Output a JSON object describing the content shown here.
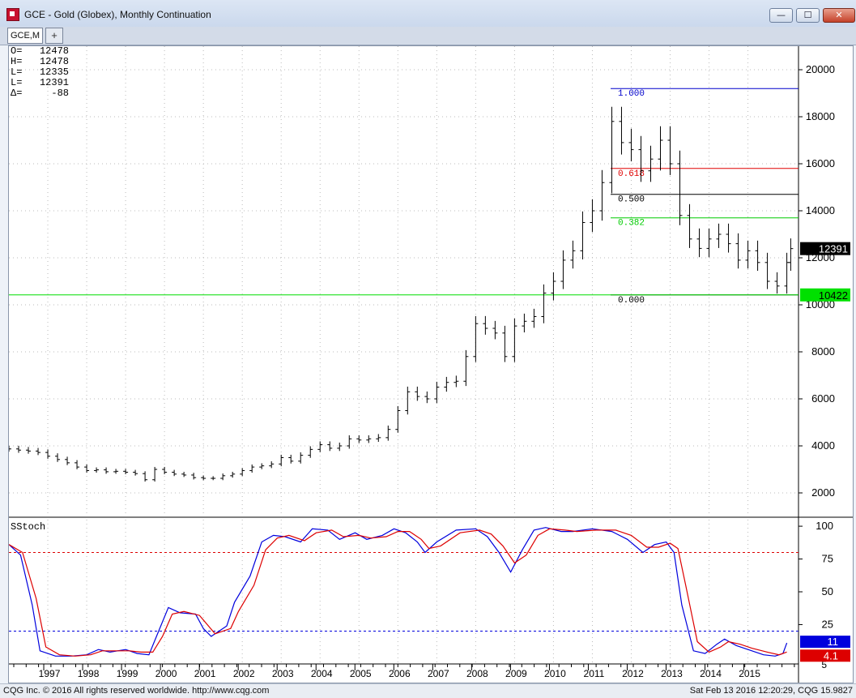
{
  "window": {
    "title": "GCE - Gold (Globex), Monthly Continuation",
    "tab_label": "GCE,M",
    "tab_add": "+",
    "minimize": "—",
    "maximize": "☐",
    "close": "✕"
  },
  "ohlc_readout": [
    {
      "label": "O=",
      "value": "12478"
    },
    {
      "label": "H=",
      "value": "12478"
    },
    {
      "label": "L=",
      "value": "12335"
    },
    {
      "label": "L=",
      "value": "12391"
    },
    {
      "label": "Δ=",
      "value": "-88"
    }
  ],
  "colors": {
    "price_bar": "#000000",
    "fib_blue": "#0000cc",
    "fib_red": "#e00000",
    "fib_green": "#00cc00",
    "fib_black": "#000000",
    "support_line": "#00dd00",
    "stoch_k": "#0000dd",
    "stoch_d": "#dd0000",
    "last_price_badge": "#000000",
    "support_badge": "#00e000"
  },
  "chart_data": [
    {
      "type": "ohlc",
      "series_name": "GCE,M",
      "x_unit": "year",
      "ylim": [
        1000,
        21000
      ],
      "y_ticks": [
        2000,
        4000,
        6000,
        8000,
        10000,
        12000,
        14000,
        16000,
        18000,
        20000
      ],
      "x_ticks": [
        "1997",
        "1998",
        "1999",
        "2000",
        "2001",
        "2002",
        "2003",
        "2004",
        "2005",
        "2006",
        "2007",
        "2008",
        "2009",
        "2010",
        "2011",
        "2012",
        "2013",
        "2014",
        "2015"
      ],
      "grid": true,
      "points": [
        [
          1996.0,
          3870
        ],
        [
          1996.25,
          3820
        ],
        [
          1996.5,
          3780
        ],
        [
          1996.75,
          3720
        ],
        [
          1997.0,
          3560
        ],
        [
          1997.25,
          3420
        ],
        [
          1997.5,
          3280
        ],
        [
          1997.75,
          3100
        ],
        [
          1998.0,
          2950
        ],
        [
          1998.25,
          2980
        ],
        [
          1998.5,
          2900
        ],
        [
          1998.75,
          2920
        ],
        [
          1999.0,
          2880
        ],
        [
          1999.25,
          2820
        ],
        [
          1999.5,
          2560
        ],
        [
          1999.75,
          3000
        ],
        [
          2000.0,
          2880
        ],
        [
          2000.25,
          2800
        ],
        [
          2000.5,
          2760
        ],
        [
          2000.75,
          2650
        ],
        [
          2001.0,
          2620
        ],
        [
          2001.25,
          2620
        ],
        [
          2001.5,
          2730
        ],
        [
          2001.75,
          2800
        ],
        [
          2002.0,
          2950
        ],
        [
          2002.25,
          3100
        ],
        [
          2002.5,
          3150
        ],
        [
          2002.75,
          3230
        ],
        [
          2003.0,
          3500
        ],
        [
          2003.25,
          3350
        ],
        [
          2003.5,
          3600
        ],
        [
          2003.75,
          3850
        ],
        [
          2004.0,
          4050
        ],
        [
          2004.25,
          3900
        ],
        [
          2004.5,
          4000
        ],
        [
          2004.75,
          4300
        ],
        [
          2005.0,
          4250
        ],
        [
          2005.25,
          4300
        ],
        [
          2005.5,
          4350
        ],
        [
          2005.75,
          4700
        ],
        [
          2006.0,
          5500
        ],
        [
          2006.25,
          6300
        ],
        [
          2006.5,
          6100
        ],
        [
          2006.75,
          6000
        ],
        [
          2007.0,
          6500
        ],
        [
          2007.25,
          6700
        ],
        [
          2007.5,
          6750
        ],
        [
          2007.75,
          7800
        ],
        [
          2008.0,
          9200
        ],
        [
          2008.25,
          9000
        ],
        [
          2008.5,
          8800
        ],
        [
          2008.75,
          7800
        ],
        [
          2009.0,
          9100
        ],
        [
          2009.25,
          9300
        ],
        [
          2009.5,
          9500
        ],
        [
          2009.75,
          10500
        ],
        [
          2010.0,
          11000
        ],
        [
          2010.25,
          11900
        ],
        [
          2010.5,
          12300
        ],
        [
          2010.75,
          13500
        ],
        [
          2011.0,
          14000
        ],
        [
          2011.25,
          15200
        ],
        [
          2011.5,
          17800
        ],
        [
          2011.75,
          16900
        ],
        [
          2012.0,
          16600
        ],
        [
          2012.25,
          15700
        ],
        [
          2012.5,
          16200
        ],
        [
          2012.75,
          17000
        ],
        [
          2013.0,
          16000
        ],
        [
          2013.25,
          13800
        ],
        [
          2013.5,
          12800
        ],
        [
          2013.75,
          12400
        ],
        [
          2014.0,
          12800
        ],
        [
          2014.25,
          13000
        ],
        [
          2014.5,
          12600
        ],
        [
          2014.75,
          11900
        ],
        [
          2015.0,
          12300
        ],
        [
          2015.25,
          11800
        ],
        [
          2015.5,
          11000
        ],
        [
          2015.75,
          10800
        ],
        [
          2016.0,
          11800
        ],
        [
          2016.1,
          12391
        ]
      ],
      "fibonacci_levels": [
        {
          "label": "1.000",
          "value": 19200,
          "color_key": "fib_blue"
        },
        {
          "label": "0.618",
          "value": 15800,
          "color_key": "fib_red"
        },
        {
          "label": "0.500",
          "value": 14700,
          "color_key": "fib_black"
        },
        {
          "label": "0.382",
          "value": 13700,
          "color_key": "fib_green"
        },
        {
          "label": "0.000",
          "value": 10422,
          "color_key": "fib_black"
        }
      ],
      "horizontal_line": {
        "value": 10422
      },
      "price_badges": [
        {
          "label": "12391",
          "value": 12391,
          "color_key": "last_price_badge"
        },
        {
          "label": "10422",
          "value": 10422,
          "color_key": "support_badge"
        }
      ]
    },
    {
      "type": "line",
      "indicator_label": "SStoch",
      "ylim": [
        -5,
        105
      ],
      "y_ticks": [
        25,
        50,
        75,
        100
      ],
      "bottom_tick_label": "5",
      "reference_lines": [
        {
          "value": 80,
          "color_key": "stoch_d"
        },
        {
          "value": 20,
          "color_key": "stoch_k"
        }
      ],
      "series": [
        {
          "color_key": "stoch_k",
          "points": [
            [
              1996.0,
              86
            ],
            [
              1996.3,
              78
            ],
            [
              1996.6,
              40
            ],
            [
              1996.8,
              5
            ],
            [
              1997.2,
              1
            ],
            [
              1997.6,
              1
            ],
            [
              1998.0,
              2
            ],
            [
              1998.3,
              6
            ],
            [
              1998.6,
              4
            ],
            [
              1999.0,
              6
            ],
            [
              1999.3,
              3
            ],
            [
              1999.6,
              2
            ],
            [
              1999.85,
              20
            ],
            [
              2000.1,
              38
            ],
            [
              2000.4,
              34
            ],
            [
              2000.8,
              33
            ],
            [
              2001.0,
              22
            ],
            [
              2001.2,
              16
            ],
            [
              2001.6,
              24
            ],
            [
              2001.8,
              42
            ],
            [
              2002.2,
              62
            ],
            [
              2002.5,
              88
            ],
            [
              2002.8,
              93
            ],
            [
              2003.1,
              92
            ],
            [
              2003.5,
              88
            ],
            [
              2003.8,
              98
            ],
            [
              2004.2,
              97
            ],
            [
              2004.5,
              90
            ],
            [
              2004.9,
              95
            ],
            [
              2005.2,
              90
            ],
            [
              2005.6,
              93
            ],
            [
              2005.9,
              98
            ],
            [
              2006.2,
              95
            ],
            [
              2006.5,
              88
            ],
            [
              2006.7,
              80
            ],
            [
              2007.0,
              88
            ],
            [
              2007.5,
              97
            ],
            [
              2008.0,
              98
            ],
            [
              2008.3,
              92
            ],
            [
              2008.6,
              80
            ],
            [
              2008.9,
              65
            ],
            [
              2009.2,
              82
            ],
            [
              2009.5,
              97
            ],
            [
              2009.8,
              99
            ],
            [
              2010.2,
              96
            ],
            [
              2010.5,
              96
            ],
            [
              2011.0,
              98
            ],
            [
              2011.5,
              96
            ],
            [
              2011.9,
              90
            ],
            [
              2012.3,
              80
            ],
            [
              2012.6,
              86
            ],
            [
              2012.9,
              88
            ],
            [
              2013.1,
              80
            ],
            [
              2013.3,
              40
            ],
            [
              2013.6,
              5
            ],
            [
              2013.9,
              3
            ],
            [
              2014.2,
              10
            ],
            [
              2014.4,
              14
            ],
            [
              2014.7,
              9
            ],
            [
              2015.0,
              6
            ],
            [
              2015.4,
              2
            ],
            [
              2015.7,
              1
            ],
            [
              2015.9,
              3
            ],
            [
              2016.0,
              11
            ]
          ]
        },
        {
          "color_key": "stoch_d",
          "points": [
            [
              1996.0,
              86
            ],
            [
              1996.35,
              80
            ],
            [
              1996.7,
              45
            ],
            [
              1996.95,
              8
            ],
            [
              1997.3,
              2
            ],
            [
              1997.7,
              1
            ],
            [
              1998.1,
              2
            ],
            [
              1998.4,
              5
            ],
            [
              1998.7,
              5
            ],
            [
              1999.1,
              5
            ],
            [
              1999.4,
              4
            ],
            [
              1999.7,
              4
            ],
            [
              1999.95,
              16
            ],
            [
              2000.2,
              33
            ],
            [
              2000.5,
              35
            ],
            [
              2000.9,
              32
            ],
            [
              2001.1,
              25
            ],
            [
              2001.3,
              18
            ],
            [
              2001.7,
              22
            ],
            [
              2001.9,
              35
            ],
            [
              2002.3,
              55
            ],
            [
              2002.6,
              82
            ],
            [
              2002.9,
              91
            ],
            [
              2003.2,
              93
            ],
            [
              2003.6,
              89
            ],
            [
              2003.9,
              95
            ],
            [
              2004.3,
              97
            ],
            [
              2004.6,
              92
            ],
            [
              2005.0,
              93
            ],
            [
              2005.3,
              91
            ],
            [
              2005.7,
              92
            ],
            [
              2006.0,
              96
            ],
            [
              2006.3,
              96
            ],
            [
              2006.6,
              90
            ],
            [
              2006.8,
              83
            ],
            [
              2007.1,
              85
            ],
            [
              2007.6,
              95
            ],
            [
              2008.1,
              97
            ],
            [
              2008.4,
              94
            ],
            [
              2008.7,
              85
            ],
            [
              2009.0,
              72
            ],
            [
              2009.3,
              78
            ],
            [
              2009.6,
              93
            ],
            [
              2009.9,
              98
            ],
            [
              2010.3,
              97
            ],
            [
              2010.6,
              96
            ],
            [
              2011.1,
              97
            ],
            [
              2011.6,
              97
            ],
            [
              2012.0,
              93
            ],
            [
              2012.4,
              84
            ],
            [
              2012.7,
              84
            ],
            [
              2013.0,
              87
            ],
            [
              2013.2,
              83
            ],
            [
              2013.4,
              55
            ],
            [
              2013.7,
              12
            ],
            [
              2014.0,
              4
            ],
            [
              2014.3,
              8
            ],
            [
              2014.5,
              12
            ],
            [
              2014.8,
              10
            ],
            [
              2015.1,
              7
            ],
            [
              2015.5,
              4
            ],
            [
              2015.8,
              2
            ],
            [
              2016.0,
              4.1
            ]
          ]
        }
      ],
      "value_badges": [
        {
          "label": "11",
          "value": 11,
          "color_key": "stoch_k"
        },
        {
          "label": "4.1",
          "value": 4.1,
          "color_key": "stoch_d"
        }
      ]
    }
  ],
  "status": {
    "left": "CQG Inc. © 2016 All rights reserved worldwide. http://www.cqg.com",
    "right": "Sat Feb 13 2016 12:20:29, CQG 15.9827"
  }
}
